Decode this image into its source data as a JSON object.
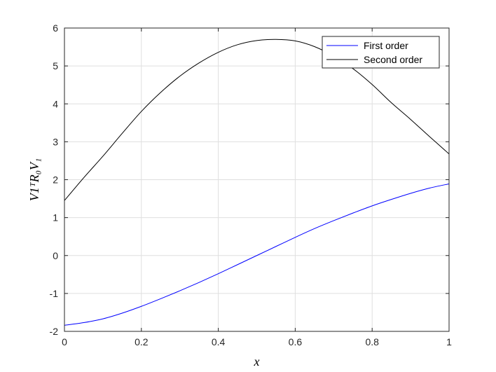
{
  "chart_data": {
    "type": "line",
    "xlabel": "x",
    "ylabel": "V1ᵀR₀V₁",
    "xlim": [
      0,
      1
    ],
    "ylim": [
      -2,
      6
    ],
    "grid": true,
    "legend_position": "top-right",
    "xticks": [
      0,
      0.2,
      0.4,
      0.6,
      0.8,
      1
    ],
    "xtick_labels": [
      "0",
      "0.2",
      "0.4",
      "0.6",
      "0.8",
      "1"
    ],
    "yticks": [
      -2,
      -1,
      0,
      1,
      2,
      3,
      4,
      5,
      6
    ],
    "ytick_labels": [
      "-2",
      "-1",
      "0",
      "1",
      "2",
      "3",
      "4",
      "5",
      "6"
    ],
    "x": [
      0,
      0.05,
      0.1,
      0.15,
      0.2,
      0.25,
      0.3,
      0.35,
      0.4,
      0.45,
      0.5,
      0.55,
      0.6,
      0.65,
      0.7,
      0.75,
      0.8,
      0.85,
      0.9,
      0.95,
      1
    ],
    "series": [
      {
        "name": "First order",
        "color": "#0000ff",
        "values": [
          -1.84,
          -1.77,
          -1.67,
          -1.52,
          -1.34,
          -1.14,
          -0.93,
          -0.71,
          -0.48,
          -0.24,
          0.0,
          0.24,
          0.48,
          0.71,
          0.92,
          1.12,
          1.31,
          1.48,
          1.64,
          1.78,
          1.89
        ]
      },
      {
        "name": "Second order",
        "color": "#000000",
        "values": [
          1.45,
          2.05,
          2.62,
          3.22,
          3.8,
          4.3,
          4.73,
          5.08,
          5.36,
          5.56,
          5.67,
          5.7,
          5.66,
          5.51,
          5.26,
          4.93,
          4.51,
          4.03,
          3.59,
          3.13,
          2.68
        ]
      }
    ]
  }
}
